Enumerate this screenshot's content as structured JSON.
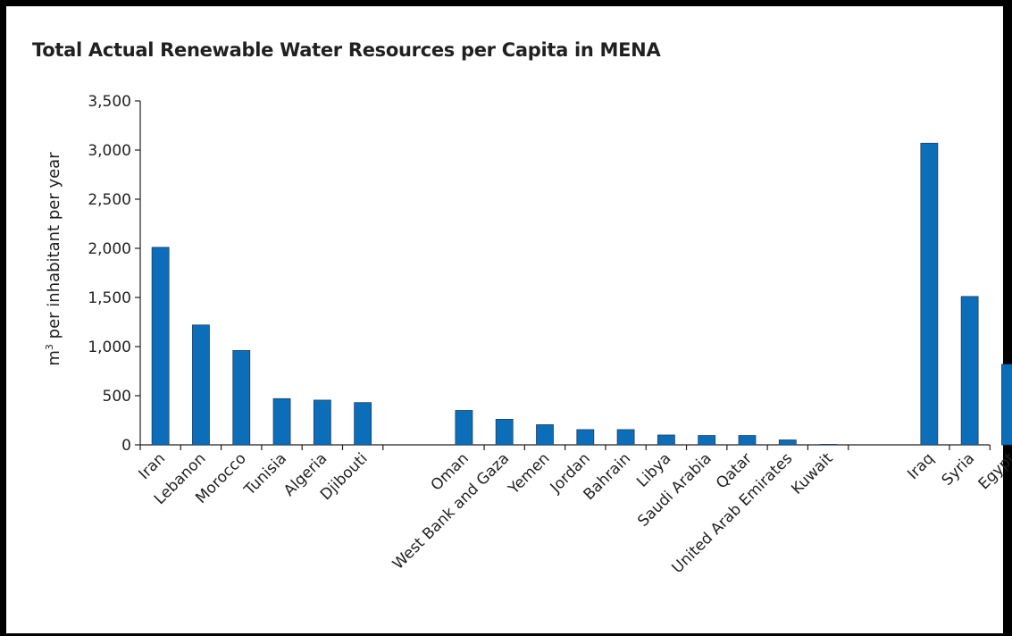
{
  "chart_data": {
    "type": "bar",
    "title": "Total Actual Renewable Water Resources per Capita in MENA",
    "ylabel_base": "m",
    "ylabel_sup": "3",
    "ylabel_rest": " per inhabitant per year",
    "xlabel": "",
    "ylim": [
      0,
      3500
    ],
    "yticks": [
      0,
      500,
      1000,
      1500,
      2000,
      2500,
      3000,
      3500
    ],
    "ytick_labels": [
      "0",
      "500",
      "1,000",
      "1,500",
      "2,000",
      "2,500",
      "3,000",
      "3,500"
    ],
    "grid": false,
    "bar_color": "#0c6eb8",
    "groups": [
      {
        "categories": [
          "Iran",
          "Lebanon",
          "Morocco",
          "Tunisia",
          "Algeria",
          "Djibouti"
        ],
        "values": [
          2010,
          1220,
          960,
          470,
          455,
          430
        ]
      },
      {
        "categories": [
          "Oman",
          "West Bank and Gaza",
          "Yemen",
          "Jordan",
          "Bahrain",
          "Libya",
          "Saudi Arabia",
          "Qatar",
          "United Arab Emirates",
          "Kuwait"
        ],
        "values": [
          350,
          260,
          205,
          155,
          155,
          100,
          95,
          95,
          50,
          5
        ]
      },
      {
        "categories": [
          "Iraq",
          "Syria",
          "Egypt"
        ],
        "values": [
          3070,
          1510,
          820
        ]
      }
    ]
  }
}
